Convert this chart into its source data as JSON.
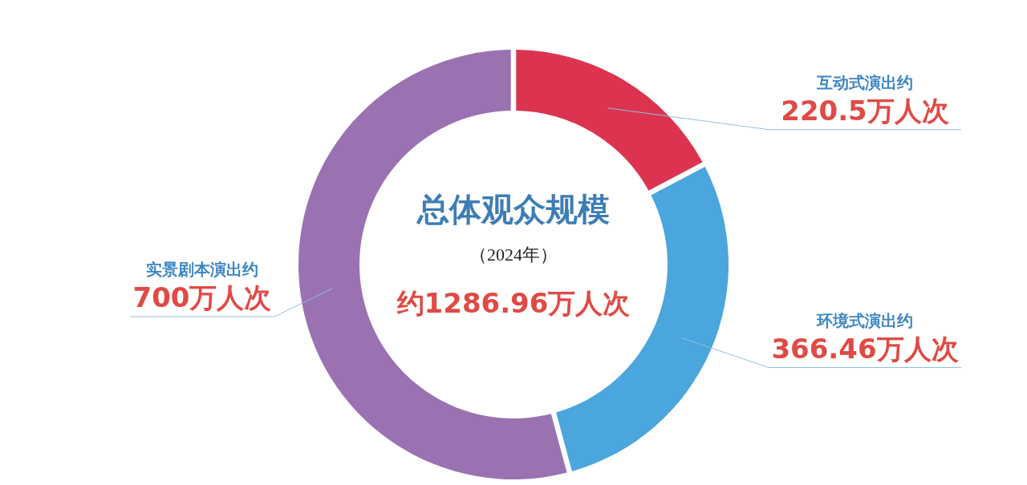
{
  "chart_data": {
    "type": "donut",
    "title": "总体观众规模",
    "subtitle": "（2024年）",
    "annotations": [
      "约1286.96万人次"
    ],
    "categories": [
      "互动式演出约",
      "环境式演出约",
      "实景剧本演出约"
    ],
    "values": [
      220.5,
      366.46,
      700
    ],
    "value_labels": [
      "220.5万人次",
      "366.46万人次",
      "700万人次"
    ],
    "colors": [
      "#dc3450",
      "#4aa6dc",
      "#9a72b2"
    ]
  }
}
